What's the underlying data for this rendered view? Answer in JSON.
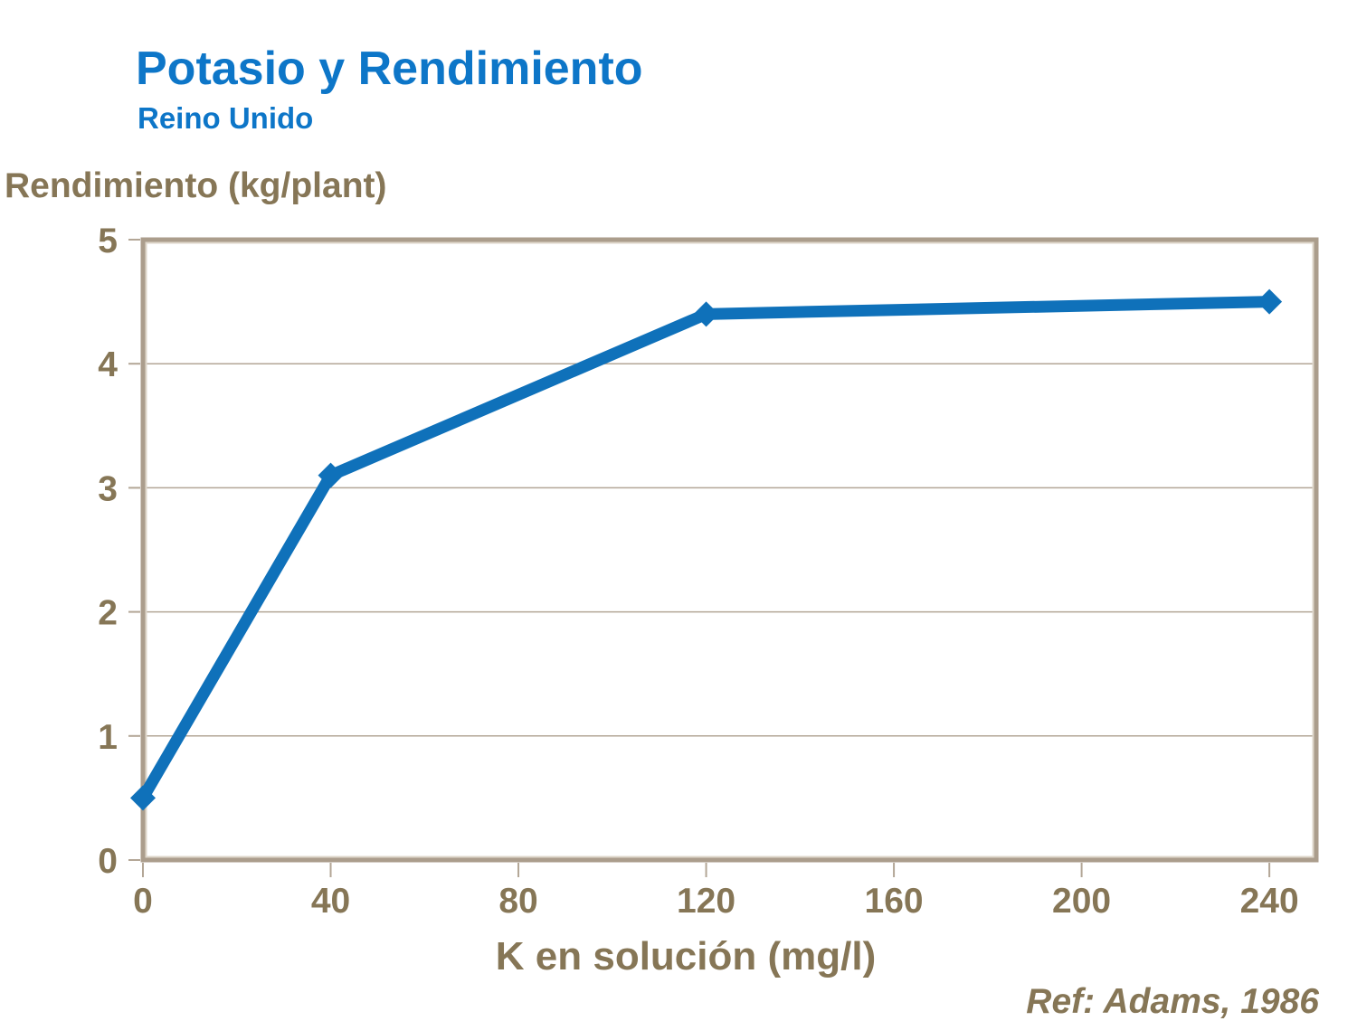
{
  "header": {
    "title": "Potasio y Rendimiento",
    "subtitle": "Reino Unido"
  },
  "footer": {
    "reference": "Ref: Adams, 1986"
  },
  "colors": {
    "background": "#ffffff",
    "title_blue": "#0d76c8",
    "line_blue": "#0f71ba",
    "text_brown": "#867656",
    "axis_dark": "#ab9d8c",
    "axis_light": "#ded6ca",
    "grid_tan": "#b3a696"
  },
  "chart_data": {
    "type": "line",
    "title": "Potasio y Rendimiento",
    "subtitle": "Reino Unido",
    "x": [
      0,
      40,
      120,
      240
    ],
    "y": [
      0.5,
      3.1,
      4.4,
      4.5
    ],
    "xlabel": "K en solución (mg/l)",
    "ylabel": "Rendimiento (kg/plant)",
    "xlim": [
      0,
      250
    ],
    "ylim": [
      0,
      5
    ],
    "x_ticks": [
      0,
      40,
      80,
      120,
      160,
      200,
      240
    ],
    "y_ticks": [
      0,
      1,
      2,
      3,
      4,
      5
    ],
    "grid": "horizontal-only",
    "legend": "none",
    "marker": "diamond",
    "annotation": "Ref: Adams, 1986"
  }
}
